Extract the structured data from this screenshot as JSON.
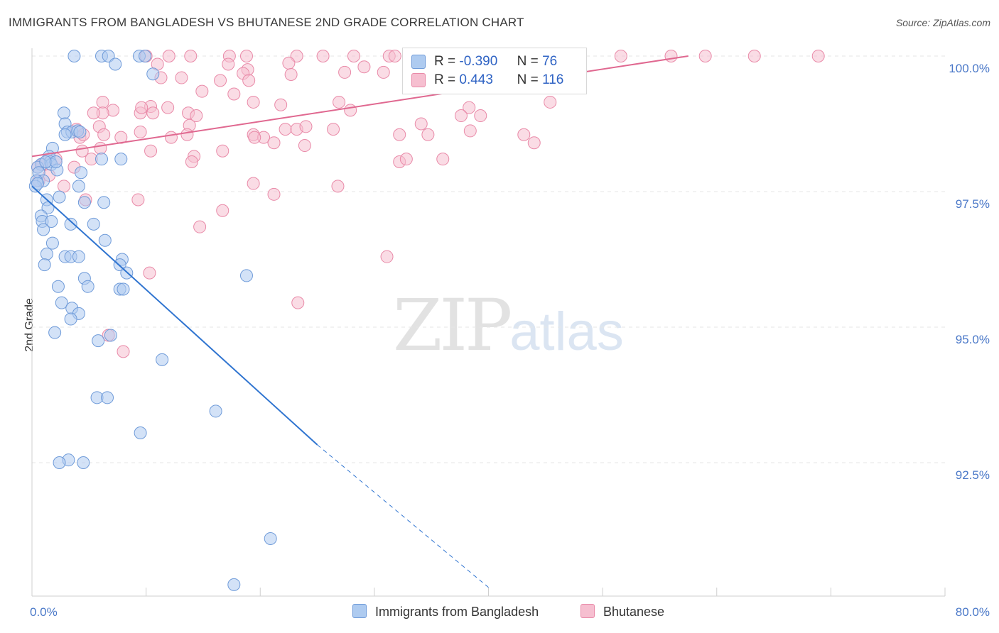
{
  "title": "IMMIGRANTS FROM BANGLADESH VS BHUTANESE 2ND GRADE CORRELATION CHART",
  "source": "Source: ZipAtlas.com",
  "watermark": {
    "zip": "ZIP",
    "atlas": "atlas"
  },
  "legend": {
    "r_label": "R =",
    "n_label": "N =",
    "series": [
      {
        "r": "-0.390",
        "n": "76"
      },
      {
        "r": "0.443",
        "n": "116"
      }
    ]
  },
  "chart_data": {
    "type": "scatter",
    "title": "IMMIGRANTS FROM BANGLADESH VS BHUTANESE 2ND GRADE CORRELATION CHART",
    "xlabel": "",
    "ylabel": "2nd Grade",
    "xlim": [
      0,
      80
    ],
    "ylim": [
      90.2,
      100.2
    ],
    "x_tick_labels": [
      {
        "value": 0,
        "label": "0.0%"
      },
      {
        "value": 80,
        "label": "80.0%"
      }
    ],
    "y_tick_labels": [
      {
        "value": 100.0,
        "label": "100.0%"
      },
      {
        "value": 97.5,
        "label": "97.5%"
      },
      {
        "value": 95.0,
        "label": "95.0%"
      },
      {
        "value": 92.5,
        "label": "92.5%"
      }
    ],
    "legend_position": "bottom",
    "colors": {
      "bangladesh_fill": "#aecbf0",
      "bangladesh_stroke": "#6f9bd9",
      "bangladesh_line": "#2f74d0",
      "bhutanese_fill": "#f6bfd0",
      "bhutanese_stroke": "#e98aa8",
      "bhutanese_line": "#e06890"
    },
    "series": [
      {
        "name": "Immigrants from Bangladesh",
        "trend": {
          "x": [
            0,
            25
          ],
          "y": [
            97.6,
            92.83
          ],
          "dashed_to": {
            "x": 40,
            "y": 90.2
          }
        },
        "points": [
          [
            3.7,
            100.0
          ],
          [
            6.1,
            100.0
          ],
          [
            6.7,
            100.0
          ],
          [
            9.4,
            100.0
          ],
          [
            9.9,
            100.0
          ],
          [
            7.3,
            99.85
          ],
          [
            10.6,
            99.67
          ],
          [
            2.8,
            98.95
          ],
          [
            2.9,
            98.75
          ],
          [
            3.1,
            98.6
          ],
          [
            3.5,
            98.6
          ],
          [
            4.0,
            98.62
          ],
          [
            4.2,
            98.6
          ],
          [
            2.9,
            98.55
          ],
          [
            1.8,
            98.3
          ],
          [
            1.5,
            98.15
          ],
          [
            6.1,
            98.1
          ],
          [
            7.8,
            98.1
          ],
          [
            1.6,
            98.05
          ],
          [
            0.8,
            98.0
          ],
          [
            1.7,
            98.0
          ],
          [
            0.5,
            97.95
          ],
          [
            0.6,
            97.85
          ],
          [
            2.2,
            97.9
          ],
          [
            4.3,
            97.85
          ],
          [
            1.0,
            97.7
          ],
          [
            0.4,
            97.7
          ],
          [
            0.3,
            97.6
          ],
          [
            4.1,
            97.6
          ],
          [
            2.4,
            97.4
          ],
          [
            1.3,
            97.35
          ],
          [
            4.6,
            97.3
          ],
          [
            6.3,
            97.3
          ],
          [
            1.4,
            97.2
          ],
          [
            0.8,
            97.05
          ],
          [
            0.9,
            96.95
          ],
          [
            1.7,
            96.95
          ],
          [
            3.4,
            96.9
          ],
          [
            5.4,
            96.9
          ],
          [
            1.0,
            96.8
          ],
          [
            6.4,
            96.6
          ],
          [
            1.8,
            96.55
          ],
          [
            1.3,
            96.35
          ],
          [
            2.9,
            96.3
          ],
          [
            3.4,
            96.3
          ],
          [
            4.1,
            96.3
          ],
          [
            7.9,
            96.25
          ],
          [
            1.1,
            96.15
          ],
          [
            7.7,
            96.15
          ],
          [
            8.3,
            96.0
          ],
          [
            18.8,
            95.95
          ],
          [
            4.6,
            95.9
          ],
          [
            4.9,
            95.75
          ],
          [
            2.3,
            95.75
          ],
          [
            7.7,
            95.7
          ],
          [
            8.0,
            95.7
          ],
          [
            2.6,
            95.45
          ],
          [
            3.5,
            95.35
          ],
          [
            4.1,
            95.25
          ],
          [
            3.4,
            95.15
          ],
          [
            2.0,
            94.9
          ],
          [
            6.9,
            94.85
          ],
          [
            5.8,
            94.75
          ],
          [
            11.4,
            94.4
          ],
          [
            5.7,
            93.7
          ],
          [
            6.6,
            93.7
          ],
          [
            16.1,
            93.45
          ],
          [
            9.5,
            93.05
          ],
          [
            3.2,
            92.55
          ],
          [
            2.4,
            92.5
          ],
          [
            4.5,
            92.5
          ],
          [
            20.9,
            91.1
          ],
          [
            17.7,
            90.25
          ],
          [
            0.5,
            97.65
          ],
          [
            1.2,
            98.05
          ],
          [
            2.1,
            98.05
          ]
        ]
      },
      {
        "name": "Bhutanese",
        "trend": {
          "x": [
            0,
            57.5
          ],
          "y": [
            98.15,
            100.0
          ]
        },
        "points": [
          [
            10.0,
            100.0
          ],
          [
            12.0,
            100.0
          ],
          [
            13.9,
            100.0
          ],
          [
            17.3,
            100.0
          ],
          [
            18.8,
            100.0
          ],
          [
            23.2,
            100.0
          ],
          [
            25.5,
            100.0
          ],
          [
            28.2,
            100.0
          ],
          [
            31.3,
            100.0
          ],
          [
            31.8,
            100.0
          ],
          [
            36.2,
            100.0
          ],
          [
            37.8,
            100.0
          ],
          [
            40.1,
            100.0
          ],
          [
            44.1,
            100.0
          ],
          [
            45.4,
            100.0
          ],
          [
            51.6,
            100.0
          ],
          [
            56.0,
            100.0
          ],
          [
            59.0,
            100.0
          ],
          [
            63.3,
            100.0
          ],
          [
            68.9,
            100.0
          ],
          [
            17.2,
            99.85
          ],
          [
            11.0,
            99.85
          ],
          [
            22.5,
            99.87
          ],
          [
            18.9,
            99.75
          ],
          [
            29.1,
            99.8
          ],
          [
            36.0,
            99.8
          ],
          [
            18.5,
            99.68
          ],
          [
            11.3,
            99.6
          ],
          [
            13.1,
            99.6
          ],
          [
            16.5,
            99.55
          ],
          [
            19.0,
            99.55
          ],
          [
            22.7,
            99.66
          ],
          [
            27.4,
            99.7
          ],
          [
            30.8,
            99.7
          ],
          [
            37.7,
            99.75
          ],
          [
            41.6,
            99.7
          ],
          [
            48.0,
            99.7
          ],
          [
            34.0,
            99.5
          ],
          [
            43.8,
            99.45
          ],
          [
            46.5,
            99.5
          ],
          [
            14.9,
            99.35
          ],
          [
            17.7,
            99.3
          ],
          [
            6.2,
            99.15
          ],
          [
            19.4,
            99.15
          ],
          [
            21.8,
            99.1
          ],
          [
            26.9,
            99.15
          ],
          [
            38.3,
            99.05
          ],
          [
            45.4,
            99.15
          ],
          [
            10.4,
            99.07
          ],
          [
            11.9,
            99.05
          ],
          [
            7.1,
            99.0
          ],
          [
            6.2,
            98.95
          ],
          [
            9.5,
            98.95
          ],
          [
            10.6,
            98.95
          ],
          [
            13.7,
            98.95
          ],
          [
            9.6,
            99.05
          ],
          [
            5.4,
            98.95
          ],
          [
            14.4,
            98.9
          ],
          [
            27.9,
            99.0
          ],
          [
            37.6,
            98.9
          ],
          [
            39.3,
            98.9
          ],
          [
            5.9,
            98.7
          ],
          [
            13.8,
            98.72
          ],
          [
            22.2,
            98.65
          ],
          [
            23.2,
            98.65
          ],
          [
            24.0,
            98.7
          ],
          [
            26.4,
            98.65
          ],
          [
            3.9,
            98.65
          ],
          [
            4.2,
            98.5
          ],
          [
            4.5,
            98.55
          ],
          [
            6.3,
            98.55
          ],
          [
            7.8,
            98.5
          ],
          [
            9.5,
            98.6
          ],
          [
            12.2,
            98.5
          ],
          [
            13.6,
            98.55
          ],
          [
            19.4,
            98.55
          ],
          [
            20.3,
            98.5
          ],
          [
            21.2,
            98.4
          ],
          [
            23.9,
            98.35
          ],
          [
            32.2,
            98.55
          ],
          [
            34.1,
            98.75
          ],
          [
            34.7,
            98.55
          ],
          [
            38.4,
            98.62
          ],
          [
            43.1,
            98.55
          ],
          [
            4.4,
            98.25
          ],
          [
            6.0,
            98.3
          ],
          [
            10.4,
            98.25
          ],
          [
            14.2,
            98.15
          ],
          [
            16.7,
            98.25
          ],
          [
            14.0,
            98.05
          ],
          [
            32.2,
            98.05
          ],
          [
            32.8,
            98.1
          ],
          [
            36.0,
            98.1
          ],
          [
            5.2,
            98.1
          ],
          [
            2.1,
            98.1
          ],
          [
            1.2,
            98.05
          ],
          [
            0.9,
            98.0
          ],
          [
            0.5,
            97.95
          ],
          [
            3.7,
            97.95
          ],
          [
            1.5,
            97.8
          ],
          [
            0.6,
            97.7
          ],
          [
            19.4,
            97.65
          ],
          [
            2.8,
            97.6
          ],
          [
            26.8,
            97.6
          ],
          [
            21.2,
            97.45
          ],
          [
            4.7,
            97.35
          ],
          [
            9.3,
            97.35
          ],
          [
            14.7,
            96.85
          ],
          [
            16.7,
            97.15
          ],
          [
            31.1,
            96.3
          ],
          [
            10.3,
            96.0
          ],
          [
            23.3,
            95.45
          ],
          [
            6.7,
            94.85
          ],
          [
            8.0,
            94.55
          ],
          [
            19.5,
            98.5
          ],
          [
            44.0,
            98.4
          ]
        ]
      }
    ]
  },
  "bottom_legend": [
    "Immigrants from Bangladesh",
    "Bhutanese"
  ]
}
